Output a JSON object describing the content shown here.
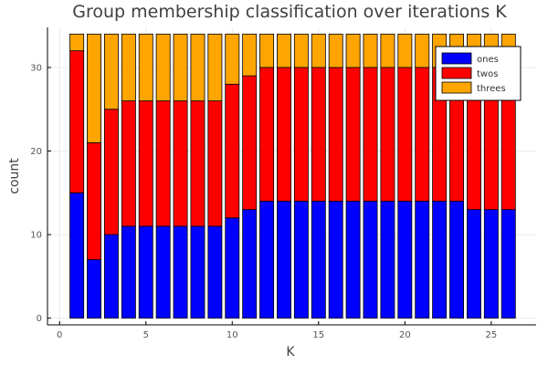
{
  "chart_data": {
    "type": "bar",
    "stacked": true,
    "title": "Group membership classification over iterations K",
    "xlabel": "K",
    "ylabel": "count",
    "x": [
      1,
      2,
      3,
      4,
      5,
      6,
      7,
      8,
      9,
      10,
      11,
      12,
      13,
      14,
      15,
      16,
      17,
      18,
      19,
      20,
      21,
      22,
      23,
      24,
      25,
      26
    ],
    "xlim": [
      -0.7,
      27.6
    ],
    "ylim": [
      -0.8,
      34.8
    ],
    "xticks": [
      0,
      5,
      10,
      15,
      20,
      25
    ],
    "yticks": [
      0,
      10,
      20,
      30
    ],
    "grid": true,
    "legend_position": "top-right",
    "series": [
      {
        "name": "ones",
        "color": "#0000ff",
        "values": [
          15,
          7,
          10,
          11,
          11,
          11,
          11,
          11,
          11,
          12,
          13,
          14,
          14,
          14,
          14,
          14,
          14,
          14,
          14,
          14,
          14,
          14,
          14,
          13,
          13,
          13
        ]
      },
      {
        "name": "twos",
        "color": "#ff0000",
        "values": [
          17,
          14,
          15,
          15,
          15,
          15,
          15,
          15,
          15,
          16,
          16,
          16,
          16,
          16,
          16,
          16,
          16,
          16,
          16,
          16,
          16,
          16,
          16,
          17,
          17,
          17
        ]
      },
      {
        "name": "threes",
        "color": "#ffa500",
        "values": [
          2,
          13,
          9,
          8,
          8,
          8,
          8,
          8,
          8,
          6,
          5,
          4,
          4,
          4,
          4,
          4,
          4,
          4,
          4,
          4,
          4,
          4,
          4,
          4,
          4,
          4
        ]
      }
    ]
  }
}
